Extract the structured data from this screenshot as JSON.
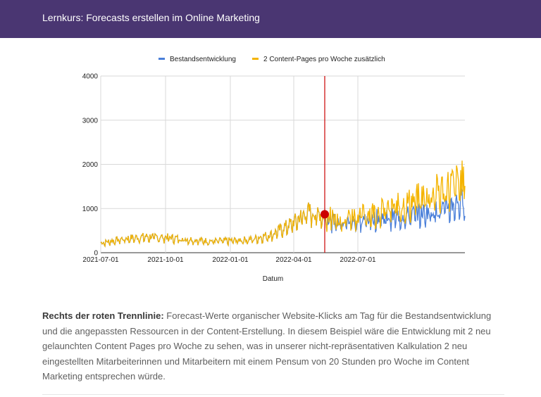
{
  "header": {
    "title": "Lernkurs: Forecasts erstellen im Online Marketing"
  },
  "caption": {
    "bold": "Rechts der roten Trennlinie:",
    "text": " Forecast-Werte organischer Website-Klicks am Tag für die Bestandsentwicklung und die angepassten Ressourcen in der Content-Erstellung. In diesem Beispiel wäre die Entwicklung mit 2 neu gelaunchten Content Pages pro Woche zu sehen, was in unserer nicht-repräsentativen Kalkulation 2 neu eingestellten Mitarbeiterinnen und Mitarbeitern mit einem Pensum von 20 Stunden pro Woche im Content Marketing entsprechen würde."
  },
  "chart_data": {
    "type": "line",
    "title": "",
    "xlabel": "Datum",
    "ylabel": "",
    "ylim": [
      0,
      4000
    ],
    "yticks": [
      "0",
      "1000",
      "2000",
      "3000",
      "4000"
    ],
    "xticks": [
      "2021-07-01",
      "2021-10-01",
      "2022-01-01",
      "2022-04-01",
      "2022-07-01"
    ],
    "xrange": [
      "2021-07-01",
      "2022-11-30"
    ],
    "grid": true,
    "legend_position": "top",
    "split_date": "2022-05-15",
    "split_marker_value": 870,
    "split_color": "#cc0000",
    "x": [
      "2021-07-01",
      "2021-08-01",
      "2021-09-01",
      "2021-10-01",
      "2021-11-01",
      "2021-12-01",
      "2022-01-01",
      "2022-02-01",
      "2022-03-01",
      "2022-04-01",
      "2022-04-20",
      "2022-05-15",
      "2022-06-01",
      "2022-07-01",
      "2022-08-01",
      "2022-09-01",
      "2022-10-01",
      "2022-11-01",
      "2022-11-30"
    ],
    "series": [
      {
        "name": "Bestandsentwicklung",
        "color": "#4a7fd9",
        "values": [
          230,
          330,
          380,
          370,
          320,
          280,
          290,
          320,
          440,
          720,
          980,
          870,
          720,
          760,
          830,
          860,
          950,
          1050,
          1280
        ]
      },
      {
        "name": "2 Content-Pages pro Woche zusätzlich",
        "color": "#f4b400",
        "values": [
          230,
          330,
          380,
          370,
          320,
          280,
          290,
          320,
          440,
          720,
          980,
          870,
          800,
          880,
          980,
          1100,
          1300,
          1500,
          1700
        ]
      }
    ]
  }
}
